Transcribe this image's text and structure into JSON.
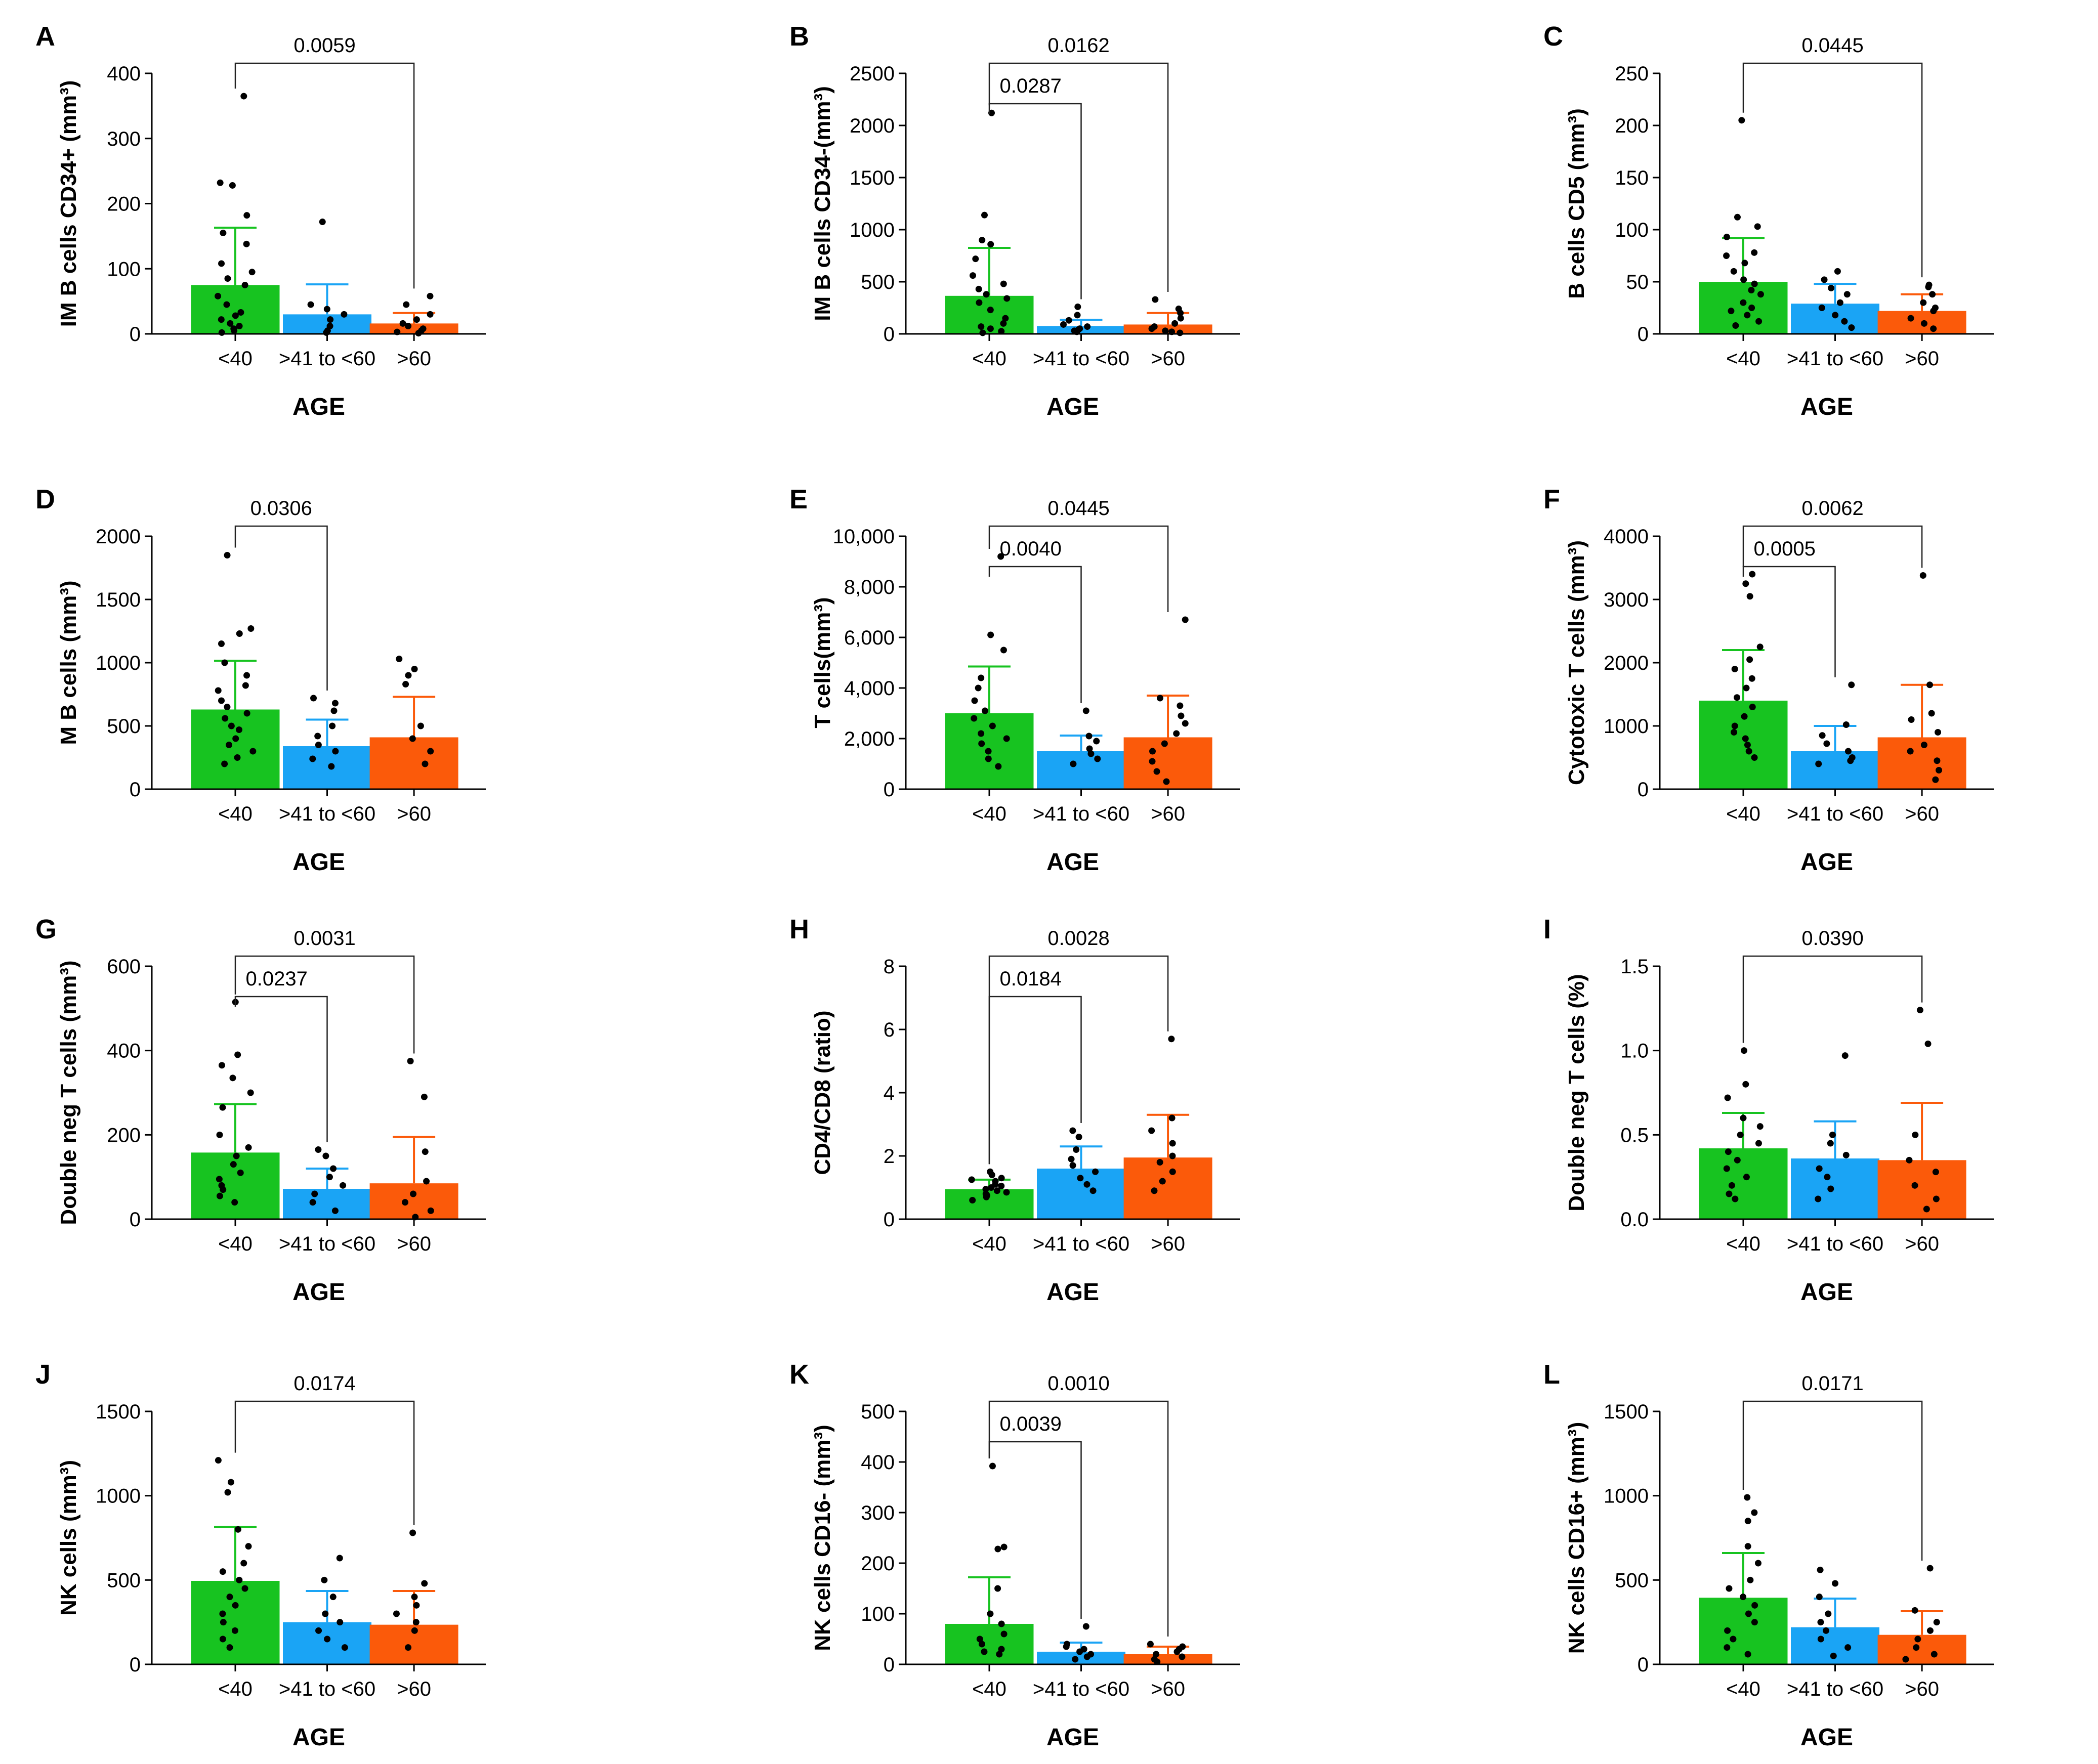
{
  "colors": {
    "lt40": "#17c320",
    "mid": "#1aa4f5",
    "gt60": "#fb5a0a",
    "axis": "#000000",
    "dot": "#000000"
  },
  "chart_data": [
    {
      "type": "bar",
      "panel": "A",
      "title": "",
      "xlabel": "AGE",
      "ylabel": "IM B cells CD34+ (mm³)",
      "categories": [
        "<40",
        ">41 to <60",
        ">60"
      ],
      "values": [
        75,
        30,
        16
      ],
      "errors": [
        88,
        46,
        16
      ],
      "ylim": [
        0,
        400
      ],
      "yticks": [
        "0",
        "100",
        "200",
        "300",
        "400"
      ],
      "points": [
        [
          365,
          232,
          228,
          182,
          155,
          138,
          108,
          95,
          85,
          75,
          58,
          45,
          33,
          28,
          22,
          16,
          12,
          8,
          5,
          2
        ],
        [
          172,
          45,
          38,
          30,
          22,
          12,
          5,
          2
        ],
        [
          58,
          45,
          30,
          22,
          16,
          12,
          8,
          5,
          3,
          1
        ]
      ],
      "comparisons": [
        {
          "from": 0,
          "to": 2,
          "p": "0.0059"
        }
      ]
    },
    {
      "type": "bar",
      "panel": "B",
      "title": "",
      "xlabel": "AGE",
      "ylabel": "IM B cells CD34-(mm³)",
      "categories": [
        "<40",
        ">41 to <60",
        ">60"
      ],
      "values": [
        365,
        75,
        90
      ],
      "errors": [
        460,
        60,
        110
      ],
      "ylim": [
        0,
        2500
      ],
      "yticks": [
        "0",
        "500",
        "1000",
        "1500",
        "2000",
        "2500"
      ],
      "points": [
        [
          2120,
          1140,
          900,
          860,
          720,
          560,
          480,
          430,
          380,
          340,
          300,
          230,
          150,
          100,
          70,
          50,
          25,
          10
        ],
        [
          260,
          180,
          130,
          90,
          70,
          50,
          40,
          30,
          20
        ],
        [
          330,
          240,
          200,
          150,
          100,
          70,
          50,
          30,
          20,
          10
        ]
      ],
      "comparisons": [
        {
          "from": 0,
          "to": 1,
          "p": "0.0287"
        },
        {
          "from": 0,
          "to": 2,
          "p": "0.0162"
        }
      ]
    },
    {
      "type": "bar",
      "panel": "C",
      "title": "",
      "xlabel": "AGE",
      "ylabel": "B cells CD5 (mm³)",
      "categories": [
        "<40",
        ">41 to <60",
        ">60"
      ],
      "values": [
        50,
        29,
        22
      ],
      "errors": [
        42,
        19,
        16
      ],
      "ylim": [
        0,
        250
      ],
      "yticks": [
        "0",
        "50",
        "100",
        "150",
        "200",
        "250"
      ],
      "points": [
        [
          205,
          112,
          103,
          93,
          78,
          75,
          68,
          60,
          52,
          48,
          42,
          38,
          30,
          25,
          22,
          18,
          12,
          8
        ],
        [
          60,
          52,
          44,
          38,
          30,
          25,
          18,
          12,
          6
        ],
        [
          47,
          45,
          38,
          30,
          25,
          22,
          15,
          10,
          5
        ]
      ],
      "comparisons": [
        {
          "from": 0,
          "to": 2,
          "p": "0.0445"
        }
      ]
    },
    {
      "type": "bar",
      "panel": "D",
      "title": "",
      "xlabel": "AGE",
      "ylabel": "M B cells (mm³)",
      "categories": [
        "<40",
        ">41 to <60",
        ">60"
      ],
      "values": [
        630,
        340,
        410
      ],
      "errors": [
        385,
        210,
        320
      ],
      "ylim": [
        0,
        2000
      ],
      "yticks": [
        "0",
        "500",
        "1000",
        "1500",
        "2000"
      ],
      "points": [
        [
          1850,
          1270,
          1230,
          1150,
          1000,
          900,
          820,
          780,
          700,
          650,
          600,
          560,
          500,
          470,
          400,
          350,
          300,
          250,
          200
        ],
        [
          720,
          680,
          620,
          500,
          420,
          350,
          300,
          240,
          180
        ],
        [
          1030,
          950,
          900,
          830,
          500,
          400,
          300,
          200
        ]
      ],
      "comparisons": [
        {
          "from": 0,
          "to": 1,
          "p": "0.0306"
        }
      ]
    },
    {
      "type": "bar",
      "panel": "E",
      "title": "",
      "xlabel": "AGE",
      "ylabel": "T cells(mm³)",
      "categories": [
        "<40",
        ">41 to <60",
        ">60"
      ],
      "values": [
        3000,
        1500,
        2050
      ],
      "errors": [
        1850,
        620,
        1650
      ],
      "ylim": [
        0,
        10000
      ],
      "yticks": [
        "0",
        "2,000",
        "4,000",
        "6,000",
        "8,000",
        "10,000"
      ],
      "points": [
        [
          9200,
          6100,
          5500,
          4400,
          4000,
          3500,
          3100,
          2800,
          2500,
          2200,
          2000,
          1800,
          1500,
          1200,
          900
        ],
        [
          3100,
          2100,
          1900,
          1600,
          1400,
          1200,
          1000
        ],
        [
          6700,
          3600,
          3300,
          2900,
          2600,
          2200,
          1800,
          1500,
          1100,
          700,
          300
        ]
      ],
      "comparisons": [
        {
          "from": 0,
          "to": 1,
          "p": "0.0040"
        },
        {
          "from": 0,
          "to": 2,
          "p": "0.0445"
        }
      ]
    },
    {
      "type": "bar",
      "panel": "F",
      "title": "",
      "xlabel": "AGE",
      "ylabel": "Cytotoxic T cells (mm³)",
      "categories": [
        "<40",
        ">41 to <60",
        ">60"
      ],
      "values": [
        1400,
        600,
        820
      ],
      "errors": [
        800,
        400,
        830
      ],
      "ylim": [
        0,
        4000
      ],
      "yticks": [
        "0",
        "1000",
        "2000",
        "3000",
        "4000"
      ],
      "points": [
        [
          3400,
          3250,
          3050,
          2250,
          2050,
          1900,
          1750,
          1600,
          1450,
          1300,
          1150,
          1000,
          900,
          800,
          700,
          600,
          500
        ],
        [
          1650,
          1020,
          850,
          720,
          600,
          500,
          450,
          400
        ],
        [
          3380,
          1650,
          1200,
          1100,
          900,
          700,
          600,
          450,
          300,
          150
        ]
      ],
      "comparisons": [
        {
          "from": 0,
          "to": 1,
          "p": "0.0005"
        },
        {
          "from": 0,
          "to": 2,
          "p": "0.0062"
        }
      ]
    },
    {
      "type": "bar",
      "panel": "G",
      "title": "",
      "xlabel": "AGE",
      "ylabel": "Double neg T cells (mm³)",
      "categories": [
        "<40",
        ">41 to <60",
        ">60"
      ],
      "values": [
        158,
        72,
        85
      ],
      "errors": [
        115,
        48,
        110
      ],
      "ylim": [
        0,
        600
      ],
      "yticks": [
        "0",
        "200",
        "400",
        "600"
      ],
      "points": [
        [
          515,
          390,
          365,
          335,
          300,
          265,
          200,
          170,
          150,
          130,
          110,
          95,
          80,
          70,
          55,
          40
        ],
        [
          165,
          150,
          120,
          100,
          80,
          60,
          40,
          20
        ],
        [
          375,
          290,
          160,
          90,
          60,
          40,
          20,
          5
        ]
      ],
      "comparisons": [
        {
          "from": 0,
          "to": 1,
          "p": "0.0237"
        },
        {
          "from": 0,
          "to": 2,
          "p": "0.0031"
        }
      ]
    },
    {
      "type": "bar",
      "panel": "H",
      "title": "",
      "xlabel": "AGE",
      "ylabel": "CD4/CD8 (ratio)",
      "categories": [
        "<40",
        ">41 to <60",
        ">60"
      ],
      "values": [
        0.95,
        1.6,
        1.95
      ],
      "errors": [
        0.3,
        0.7,
        1.35
      ],
      "ylim": [
        0,
        8
      ],
      "yticks": [
        "0",
        "2",
        "4",
        "6",
        "8"
      ],
      "points": [
        [
          1.5,
          1.4,
          1.3,
          1.25,
          1.2,
          1.1,
          1.05,
          1.0,
          0.95,
          0.9,
          0.85,
          0.8,
          0.75,
          0.7,
          0.6
        ],
        [
          2.8,
          2.6,
          2.2,
          1.9,
          1.7,
          1.5,
          1.3,
          1.1,
          0.9
        ],
        [
          5.7,
          3.2,
          2.8,
          2.4,
          2.0,
          1.8,
          1.5,
          1.2,
          0.9
        ]
      ],
      "comparisons": [
        {
          "from": 0,
          "to": 1,
          "p": "0.0184"
        },
        {
          "from": 0,
          "to": 2,
          "p": "0.0028"
        }
      ]
    },
    {
      "type": "bar",
      "panel": "I",
      "title": "",
      "xlabel": "AGE",
      "ylabel": "Double neg T cells (%)",
      "categories": [
        "<40",
        ">41 to <60",
        ">60"
      ],
      "values": [
        0.42,
        0.36,
        0.35
      ],
      "errors": [
        0.21,
        0.22,
        0.34
      ],
      "ylim": [
        0,
        1.5
      ],
      "yticks": [
        "0.0",
        "0.5",
        "1.0",
        "1.5"
      ],
      "points": [
        [
          1.0,
          0.8,
          0.72,
          0.6,
          0.55,
          0.5,
          0.45,
          0.4,
          0.35,
          0.3,
          0.25,
          0.2,
          0.15,
          0.12
        ],
        [
          0.97,
          0.5,
          0.45,
          0.38,
          0.3,
          0.25,
          0.18,
          0.12
        ],
        [
          1.24,
          1.04,
          0.5,
          0.35,
          0.28,
          0.2,
          0.12,
          0.06
        ]
      ],
      "comparisons": [
        {
          "from": 0,
          "to": 2,
          "p": "0.0390"
        }
      ]
    },
    {
      "type": "bar",
      "panel": "J",
      "title": "",
      "xlabel": "AGE",
      "ylabel": "NK cells (mm³)",
      "categories": [
        "<40",
        ">41 to <60",
        ">60"
      ],
      "values": [
        495,
        250,
        235
      ],
      "errors": [
        320,
        185,
        200
      ],
      "ylim": [
        0,
        1500
      ],
      "yticks": [
        "0",
        "500",
        "1000",
        "1500"
      ],
      "points": [
        [
          1210,
          1080,
          1020,
          800,
          700,
          600,
          550,
          500,
          450,
          400,
          350,
          300,
          250,
          200,
          150,
          100
        ],
        [
          630,
          500,
          400,
          300,
          250,
          200,
          150,
          100
        ],
        [
          780,
          480,
          400,
          350,
          300,
          250,
          200,
          100
        ]
      ],
      "comparisons": [
        {
          "from": 0,
          "to": 2,
          "p": "0.0174"
        }
      ]
    },
    {
      "type": "bar",
      "panel": "K",
      "title": "",
      "xlabel": "AGE",
      "ylabel": "NK cells CD16- (mm³)",
      "categories": [
        "<40",
        ">41 to <60",
        ">60"
      ],
      "values": [
        80,
        25,
        20
      ],
      "errors": [
        92,
        18,
        15
      ],
      "ylim": [
        0,
        500
      ],
      "yticks": [
        "0",
        "100",
        "200",
        "300",
        "400",
        "500"
      ],
      "points": [
        [
          392,
          232,
          228,
          150,
          100,
          80,
          60,
          50,
          40,
          30,
          25,
          20
        ],
        [
          75,
          40,
          35,
          30,
          25,
          20,
          15,
          10
        ],
        [
          40,
          35,
          30,
          25,
          20,
          15,
          10,
          5
        ]
      ],
      "comparisons": [
        {
          "from": 0,
          "to": 1,
          "p": "0.0039"
        },
        {
          "from": 0,
          "to": 2,
          "p": "0.0010"
        }
      ]
    },
    {
      "type": "bar",
      "panel": "L",
      "title": "",
      "xlabel": "AGE",
      "ylabel": "NK cells CD16+ (mm³)",
      "categories": [
        "<40",
        ">41 to <60",
        ">60"
      ],
      "values": [
        395,
        220,
        175
      ],
      "errors": [
        265,
        170,
        140
      ],
      "ylim": [
        0,
        1500
      ],
      "yticks": [
        "0",
        "500",
        "1000",
        "1500"
      ],
      "points": [
        [
          990,
          900,
          850,
          700,
          600,
          500,
          450,
          400,
          350,
          300,
          250,
          200,
          150,
          100,
          60
        ],
        [
          560,
          480,
          400,
          300,
          250,
          200,
          150,
          100,
          50
        ],
        [
          570,
          320,
          250,
          200,
          150,
          100,
          60,
          30
        ]
      ],
      "comparisons": [
        {
          "from": 0,
          "to": 2,
          "p": "0.0171"
        }
      ]
    }
  ]
}
